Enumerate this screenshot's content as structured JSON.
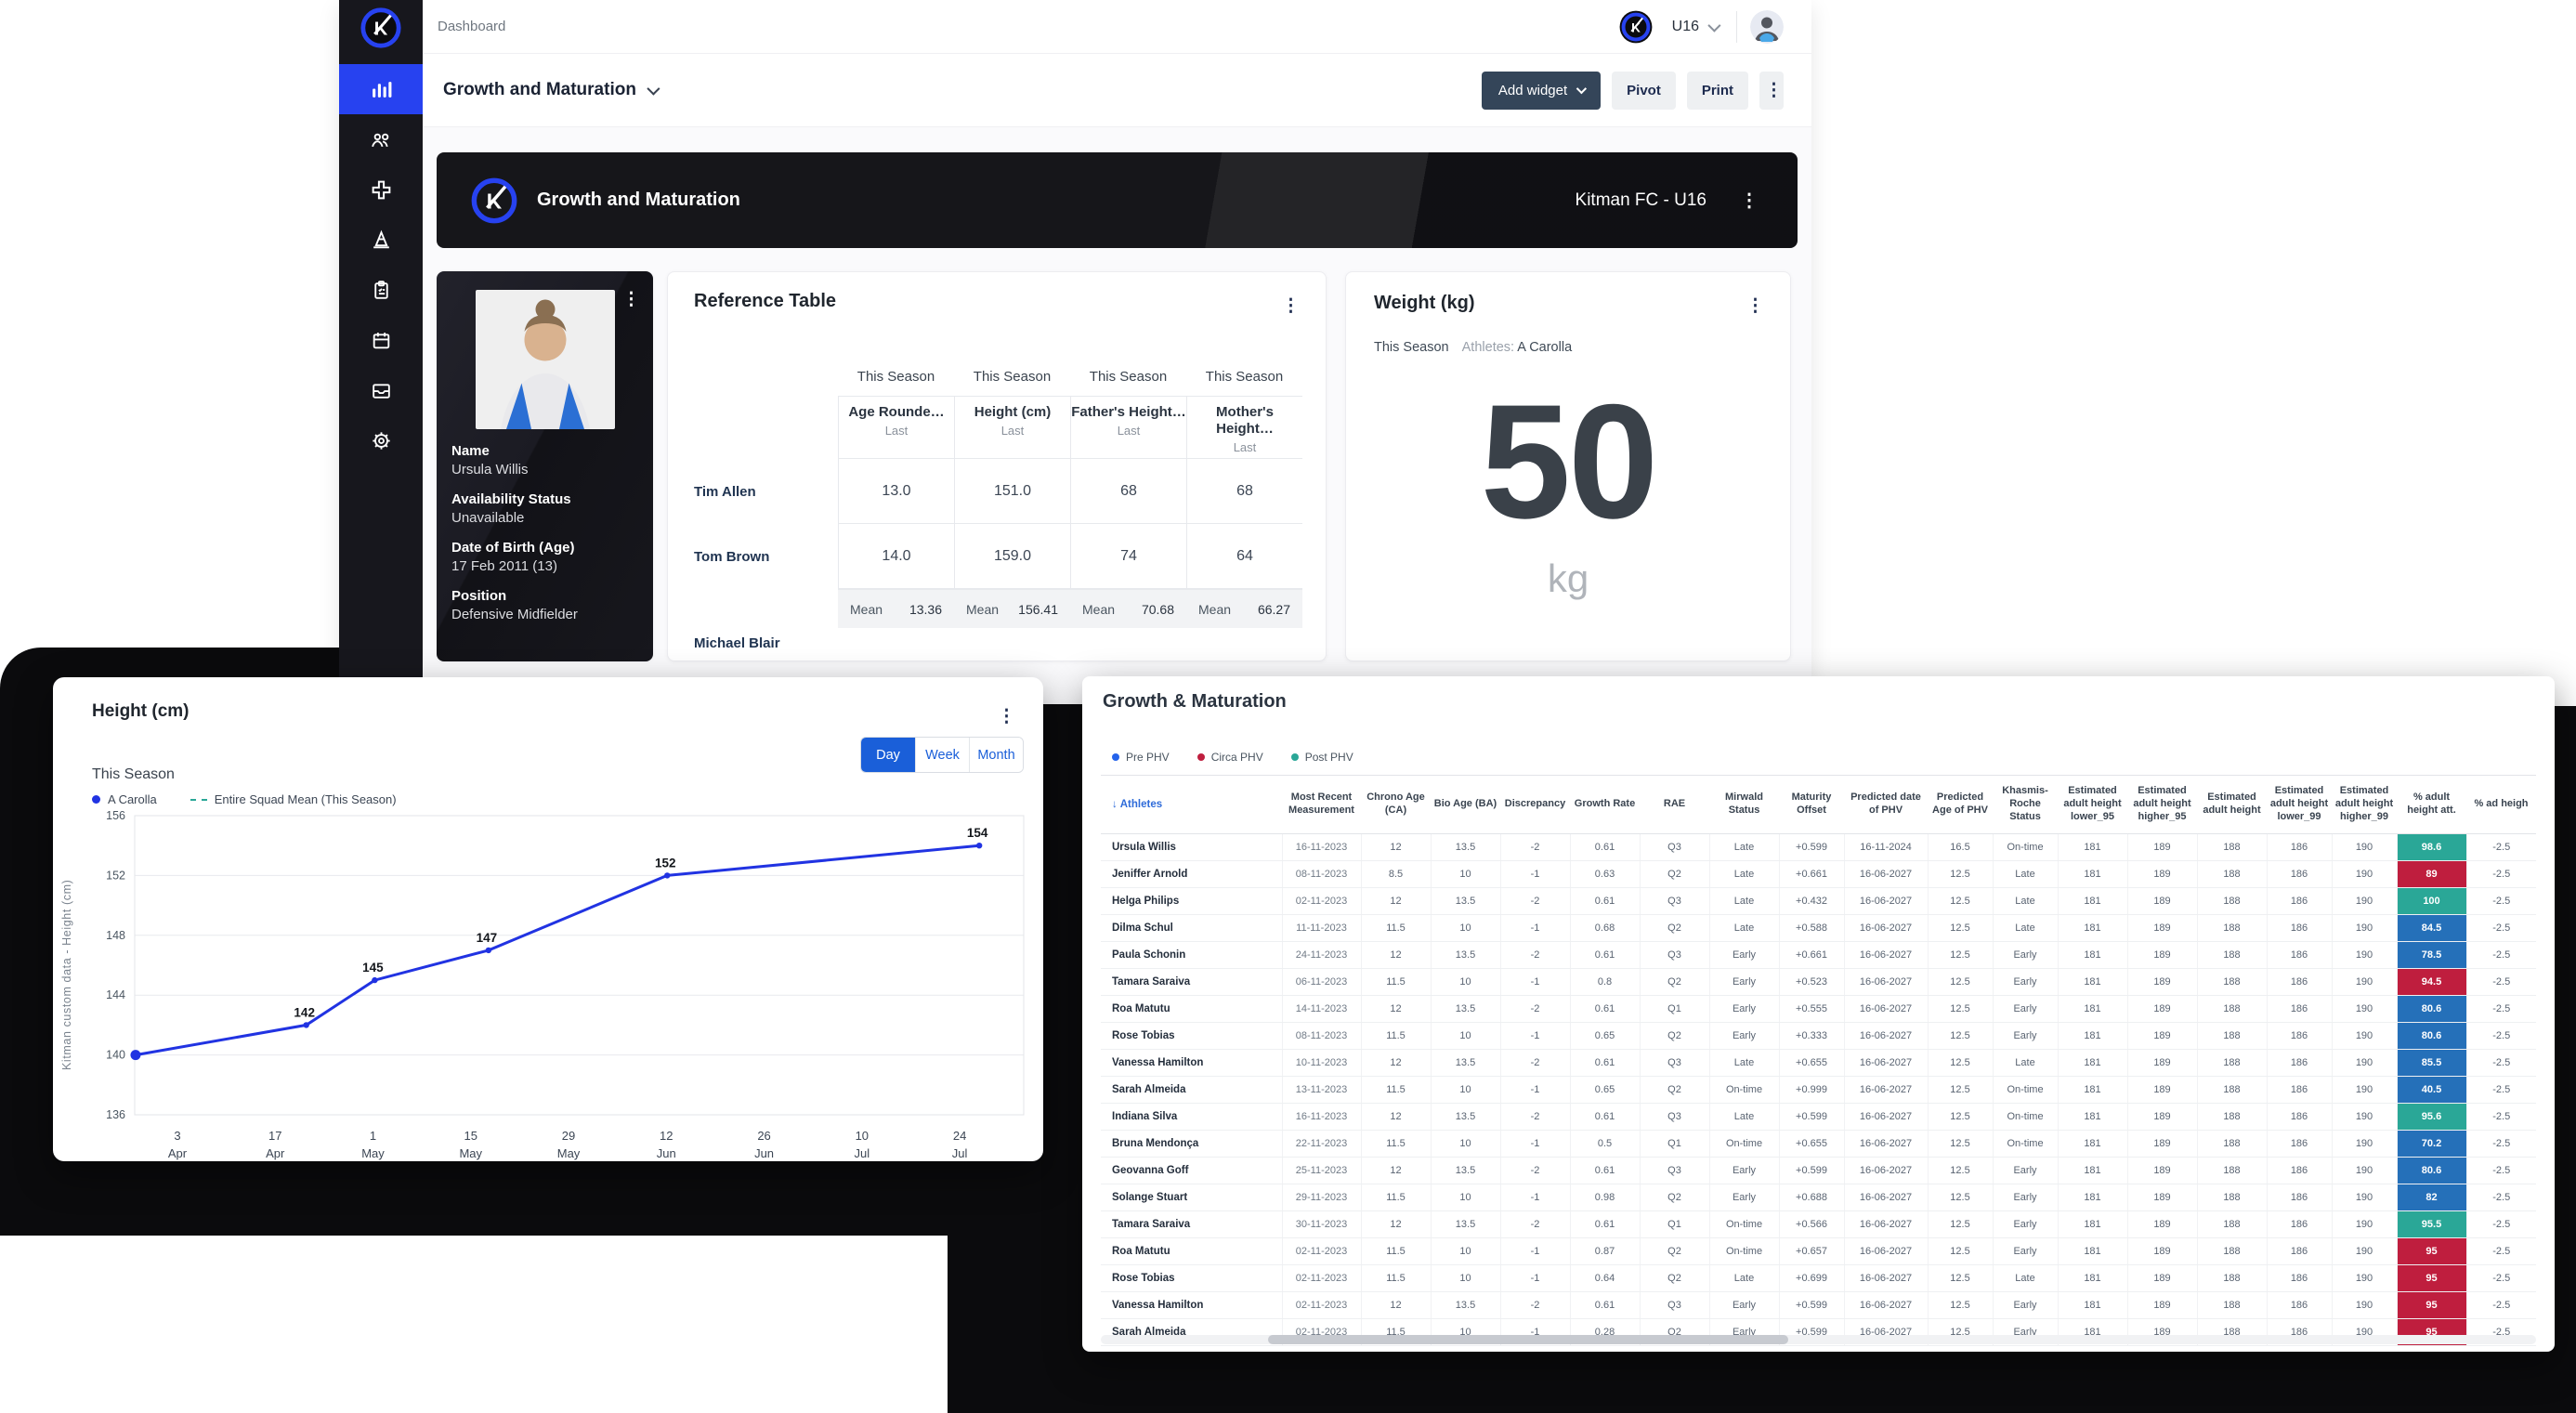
{
  "icons": {
    "kebab": "⋮",
    "sort": "↓"
  },
  "app": {
    "page_title": "Dashboard",
    "squad": "U16",
    "dashboard_selector": "Growth and Maturation",
    "add_widget": "Add widget",
    "pivot": "Pivot",
    "print": "Print",
    "banner_title": "Growth and Maturation",
    "banner_team": "Kitman FC - U16"
  },
  "sidebar": {
    "icons": [
      "analytics",
      "squad",
      "medical",
      "training",
      "assessments",
      "calendar",
      "inbox",
      "settings"
    ],
    "active": "analytics"
  },
  "player_card": {
    "name_label": "Name",
    "name": "Ursula Willis",
    "availability_label": "Availability Status",
    "availability": "Unavailable",
    "dob_label": "Date of Birth (Age)",
    "dob": "17 Feb 2011 (13)",
    "position_label": "Position",
    "position": "Defensive Midfielder"
  },
  "reference_table": {
    "title": "Reference Table",
    "season": "This Season",
    "sub": "Last",
    "columns": [
      "Age Rounde…",
      "Height (cm)",
      "Father's Height…",
      "Mother's Height…"
    ],
    "rows": [
      {
        "name": "Tim Allen",
        "values": [
          "13.0",
          "151.0",
          "68",
          "68"
        ]
      },
      {
        "name": "Tom Brown",
        "values": [
          "14.0",
          "159.0",
          "74",
          "64"
        ]
      }
    ],
    "mean_label": "Mean",
    "means": [
      "13.36",
      "156.41",
      "70.68",
      "66.27"
    ],
    "clipped_row_name": "Michael Blair"
  },
  "weight_widget": {
    "title": "Weight (kg)",
    "season": "This Season",
    "athletes_label": "Athletes:",
    "athlete": "A Carolla",
    "value": "50",
    "unit": "kg"
  },
  "chart_data": {
    "type": "line",
    "title": "Height (cm)",
    "season": "This Season",
    "period_buttons": [
      "Day",
      "Week",
      "Month"
    ],
    "active_period": "Day",
    "legend": [
      {
        "label": "A Carolla",
        "color": "#2133e2",
        "style": "dot"
      },
      {
        "label": "Entire Squad Mean (This Season)",
        "color": "#2aa797",
        "style": "dashed"
      }
    ],
    "ylabel": "Kitman custom data - Height (cm)",
    "ylim": [
      136,
      156
    ],
    "yticks": [
      136,
      140,
      144,
      148,
      152,
      156
    ],
    "grid": true,
    "line_color": "#2133e2",
    "xticks": [
      {
        "day": "3",
        "month": "Apr",
        "f": 0.048
      },
      {
        "day": "17",
        "month": "Apr",
        "f": 0.158
      },
      {
        "day": "1",
        "month": "May",
        "f": 0.268
      },
      {
        "day": "15",
        "month": "May",
        "f": 0.378
      },
      {
        "day": "29",
        "month": "May",
        "f": 0.488
      },
      {
        "day": "12",
        "month": "Jun",
        "f": 0.598
      },
      {
        "day": "26",
        "month": "Jun",
        "f": 0.708
      },
      {
        "day": "10",
        "month": "Jul",
        "f": 0.818
      },
      {
        "day": "24",
        "month": "Jul",
        "f": 0.928
      }
    ],
    "series": [
      {
        "name": "A Carolla",
        "points": [
          {
            "f": 0.001,
            "v": 140,
            "label": ""
          },
          {
            "f": 0.193,
            "v": 142,
            "label": "142"
          },
          {
            "f": 0.27,
            "v": 145,
            "label": "145"
          },
          {
            "f": 0.398,
            "v": 147,
            "label": "147"
          },
          {
            "f": 0.599,
            "v": 152,
            "label": "152"
          },
          {
            "f": 0.95,
            "v": 154,
            "label": "154"
          }
        ]
      }
    ]
  },
  "gm_table": {
    "title": "Growth & Maturation",
    "legend": [
      {
        "label": "Pre PHV",
        "color": "#2563eb"
      },
      {
        "label": "Circa PHV",
        "color": "#bf1e3e"
      },
      {
        "label": "Post PHV",
        "color": "#2aa797"
      }
    ],
    "pct_colors": {
      "teal": "#2aa797",
      "red": "#bf1e3e",
      "blue": "#2570b9"
    },
    "columns": [
      {
        "label": "Athletes",
        "w": 195
      },
      {
        "label": "Most Recent Measurement",
        "w": 85
      },
      {
        "label": "Chrono Age (CA)",
        "w": 75
      },
      {
        "label": "Bio Age (BA)",
        "w": 75
      },
      {
        "label": "Discrepancy",
        "w": 75
      },
      {
        "label": "Growth Rate",
        "w": 75
      },
      {
        "label": "RAE",
        "w": 75
      },
      {
        "label": "Mirwald Status",
        "w": 75
      },
      {
        "label": "Maturity Offset",
        "w": 70
      },
      {
        "label": "Predicted date of PHV",
        "w": 90
      },
      {
        "label": "Predicted Age of PHV",
        "w": 70
      },
      {
        "label": "Khasmis-Roche Status",
        "w": 70
      },
      {
        "label": "Estimated adult height lower_95",
        "w": 75
      },
      {
        "label": "Estimated adult height higher_95",
        "w": 75
      },
      {
        "label": "Estimated adult height",
        "w": 75
      },
      {
        "label": "Estimated adult height lower_99",
        "w": 70
      },
      {
        "label": "Estimated adult height higher_99",
        "w": 70
      },
      {
        "label": "% adult height att.",
        "w": 75
      },
      {
        "label": "% ad heigh",
        "w": 75
      }
    ],
    "rows": [
      [
        "Ursula Willis",
        "16-11-2023",
        "12",
        "13.5",
        "-2",
        "0.61",
        "Q3",
        "Late",
        "+0.599",
        "16-11-2024",
        "16.5",
        "On-time",
        "181",
        "189",
        "188",
        "186",
        "190",
        "98.6",
        "teal",
        "-2.5"
      ],
      [
        "Jeniffer Arnold",
        "08-11-2023",
        "8.5",
        "10",
        "-1",
        "0.63",
        "Q2",
        "Late",
        "+0.661",
        "16-06-2027",
        "12.5",
        "Late",
        "181",
        "189",
        "188",
        "186",
        "190",
        "89",
        "red",
        "-2.5"
      ],
      [
        "Helga Philips",
        "02-11-2023",
        "12",
        "13.5",
        "-2",
        "0.61",
        "Q3",
        "Late",
        "+0.432",
        "16-06-2027",
        "12.5",
        "Late",
        "181",
        "189",
        "188",
        "186",
        "190",
        "100",
        "teal",
        "-2.5"
      ],
      [
        "Dilma Schul",
        "11-11-2023",
        "11.5",
        "10",
        "-1",
        "0.68",
        "Q2",
        "Late",
        "+0.588",
        "16-06-2027",
        "12.5",
        "Late",
        "181",
        "189",
        "188",
        "186",
        "190",
        "84.5",
        "blue",
        "-2.5"
      ],
      [
        "Paula Schonin",
        "24-11-2023",
        "12",
        "13.5",
        "-2",
        "0.61",
        "Q3",
        "Early",
        "+0.661",
        "16-06-2027",
        "12.5",
        "Early",
        "181",
        "189",
        "188",
        "186",
        "190",
        "78.5",
        "blue",
        "-2.5"
      ],
      [
        "Tamara Saraiva",
        "06-11-2023",
        "11.5",
        "10",
        "-1",
        "0.8",
        "Q2",
        "Early",
        "+0.523",
        "16-06-2027",
        "12.5",
        "Early",
        "181",
        "189",
        "188",
        "186",
        "190",
        "94.5",
        "red",
        "-2.5"
      ],
      [
        "Roa Matutu",
        "14-11-2023",
        "12",
        "13.5",
        "-2",
        "0.61",
        "Q1",
        "Early",
        "+0.555",
        "16-06-2027",
        "12.5",
        "Early",
        "181",
        "189",
        "188",
        "186",
        "190",
        "80.6",
        "blue",
        "-2.5"
      ],
      [
        "Rose Tobias",
        "08-11-2023",
        "11.5",
        "10",
        "-1",
        "0.65",
        "Q2",
        "Early",
        "+0.333",
        "16-06-2027",
        "12.5",
        "Early",
        "181",
        "189",
        "188",
        "186",
        "190",
        "80.6",
        "blue",
        "-2.5"
      ],
      [
        "Vanessa Hamilton",
        "10-11-2023",
        "12",
        "13.5",
        "-2",
        "0.61",
        "Q3",
        "Late",
        "+0.655",
        "16-06-2027",
        "12.5",
        "Late",
        "181",
        "189",
        "188",
        "186",
        "190",
        "85.5",
        "blue",
        "-2.5"
      ],
      [
        "Sarah Almeida",
        "13-11-2023",
        "11.5",
        "10",
        "-1",
        "0.65",
        "Q2",
        "On-time",
        "+0.999",
        "16-06-2027",
        "12.5",
        "On-time",
        "181",
        "189",
        "188",
        "186",
        "190",
        "40.5",
        "blue",
        "-2.5"
      ],
      [
        "Indiana Silva",
        "16-11-2023",
        "12",
        "13.5",
        "-2",
        "0.61",
        "Q3",
        "Late",
        "+0.599",
        "16-06-2027",
        "12.5",
        "On-time",
        "181",
        "189",
        "188",
        "186",
        "190",
        "95.6",
        "teal",
        "-2.5"
      ],
      [
        "Bruna Mendonça",
        "22-11-2023",
        "11.5",
        "10",
        "-1",
        "0.5",
        "Q1",
        "On-time",
        "+0.655",
        "16-06-2027",
        "12.5",
        "On-time",
        "181",
        "189",
        "188",
        "186",
        "190",
        "70.2",
        "blue",
        "-2.5"
      ],
      [
        "Geovanna Goff",
        "25-11-2023",
        "12",
        "13.5",
        "-2",
        "0.61",
        "Q3",
        "Early",
        "+0.599",
        "16-06-2027",
        "12.5",
        "Early",
        "181",
        "189",
        "188",
        "186",
        "190",
        "80.6",
        "blue",
        "-2.5"
      ],
      [
        "Solange Stuart",
        "29-11-2023",
        "11.5",
        "10",
        "-1",
        "0.98",
        "Q2",
        "Early",
        "+0.688",
        "16-06-2027",
        "12.5",
        "Early",
        "181",
        "189",
        "188",
        "186",
        "190",
        "82",
        "blue",
        "-2.5"
      ],
      [
        "Tamara Saraiva",
        "30-11-2023",
        "12",
        "13.5",
        "-2",
        "0.61",
        "Q1",
        "On-time",
        "+0.566",
        "16-06-2027",
        "12.5",
        "Early",
        "181",
        "189",
        "188",
        "186",
        "190",
        "95.5",
        "teal",
        "-2.5"
      ],
      [
        "Roa Matutu",
        "02-11-2023",
        "11.5",
        "10",
        "-1",
        "0.87",
        "Q2",
        "On-time",
        "+0.657",
        "16-06-2027",
        "12.5",
        "Early",
        "181",
        "189",
        "188",
        "186",
        "190",
        "95",
        "red",
        "-2.5"
      ],
      [
        "Rose Tobias",
        "02-11-2023",
        "11.5",
        "10",
        "-1",
        "0.64",
        "Q2",
        "Late",
        "+0.699",
        "16-06-2027",
        "12.5",
        "Late",
        "181",
        "189",
        "188",
        "186",
        "190",
        "95",
        "red",
        "-2.5"
      ],
      [
        "Vanessa Hamilton",
        "02-11-2023",
        "12",
        "13.5",
        "-2",
        "0.61",
        "Q3",
        "Early",
        "+0.599",
        "16-06-2027",
        "12.5",
        "Early",
        "181",
        "189",
        "188",
        "186",
        "190",
        "95",
        "red",
        "-2.5"
      ],
      [
        "Sarah Almeida",
        "02-11-2023",
        "11.5",
        "10",
        "-1",
        "0.28",
        "Q2",
        "Early",
        "+0.599",
        "16-06-2027",
        "12.5",
        "Early",
        "181",
        "189",
        "188",
        "186",
        "190",
        "95",
        "red",
        "-2.5"
      ]
    ]
  }
}
